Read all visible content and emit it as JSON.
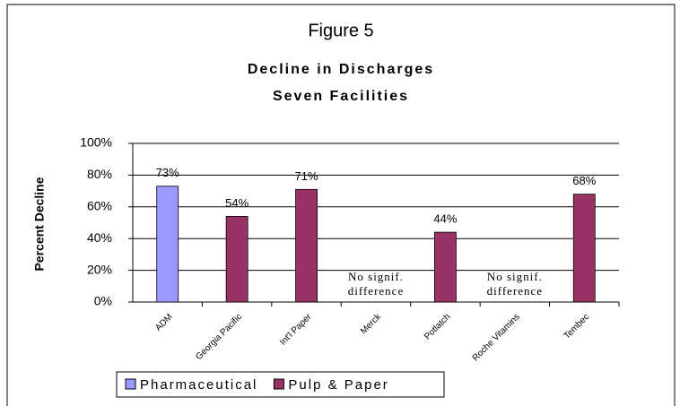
{
  "chart_data": {
    "type": "bar",
    "figure_label": "Figure 5",
    "title": "Decline in Discharges",
    "subtitle": "Seven Facilities",
    "y_label": "Percent Decline",
    "categories": [
      "ADM",
      "Georgia Pacific",
      "Int'l Paper",
      "Merck",
      "Potlatch",
      "Roche Vitamins",
      "Tembec"
    ],
    "series": [
      {
        "name": "Pharmaceutical",
        "color": "#9999ff",
        "values": [
          73,
          null,
          null,
          null,
          null,
          null,
          null
        ],
        "value_labels": [
          "73%",
          null,
          null,
          null,
          null,
          null,
          null
        ]
      },
      {
        "name": "Pulp & Paper",
        "color": "#993366",
        "values": [
          null,
          54,
          71,
          null,
          44,
          null,
          68
        ],
        "value_labels": [
          null,
          "54%",
          "71%",
          null,
          "44%",
          null,
          "68%"
        ]
      }
    ],
    "annotations": [
      {
        "category": "Merck",
        "lines": [
          "No signif.",
          "difference"
        ]
      },
      {
        "category": "Roche Vitamins",
        "lines": [
          "No signif.",
          "difference"
        ]
      }
    ],
    "ylim": [
      0,
      100
    ],
    "yticks": [
      {
        "value": 0,
        "label": "0%"
      },
      {
        "value": 20,
        "label": "20%"
      },
      {
        "value": 40,
        "label": "40%"
      },
      {
        "value": 60,
        "label": "60%"
      },
      {
        "value": 80,
        "label": "80%"
      },
      {
        "value": 100,
        "label": "100%"
      }
    ],
    "grid": true,
    "legend": "bottom"
  }
}
